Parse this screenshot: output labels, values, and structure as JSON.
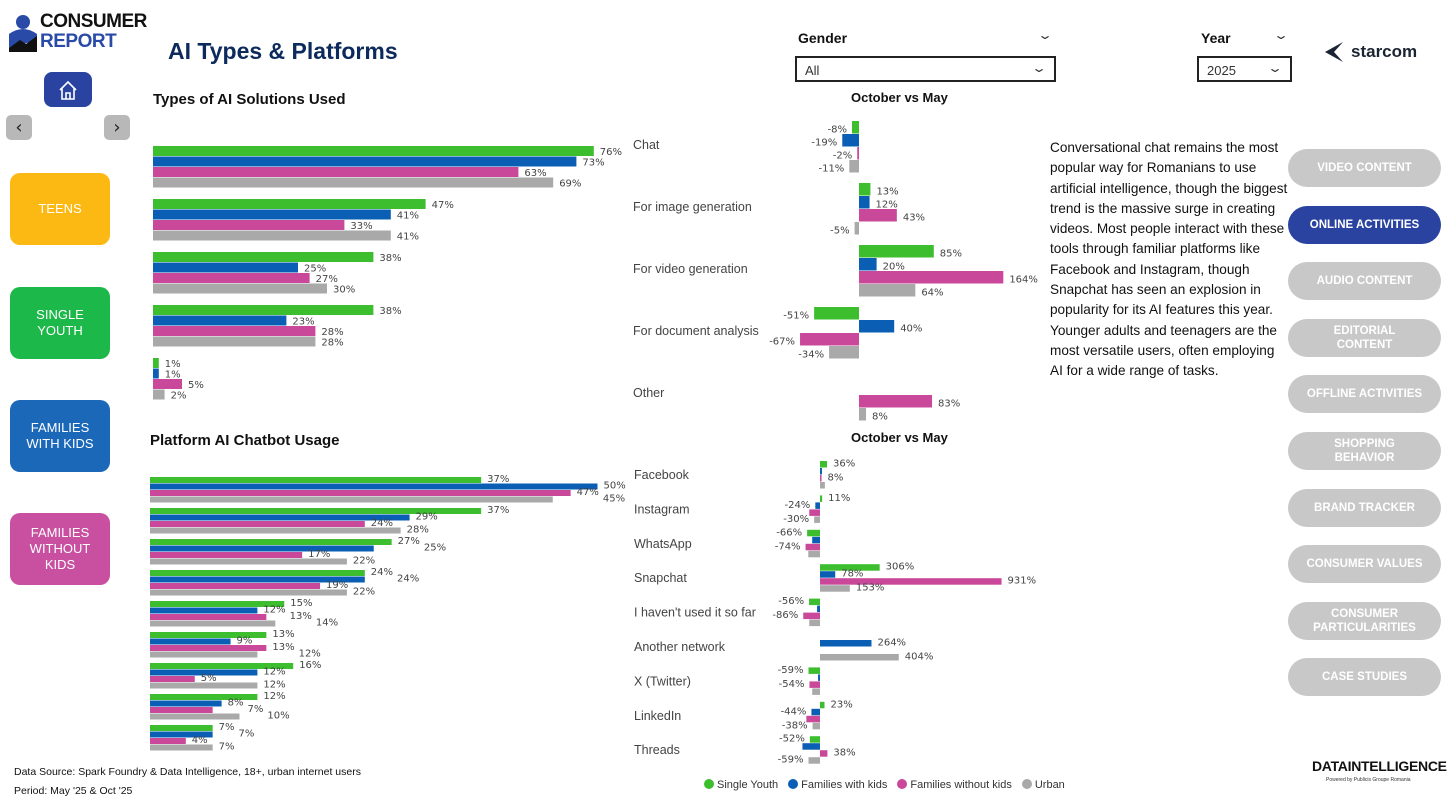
{
  "brand": {
    "logo_line1": "CONSUMER",
    "logo_line2": "REPORT",
    "partner": "starcom",
    "footer_logo": "DATAINTELLIGENCE",
    "footer_logo_sub": "Powered by Publicis Groupe Romania"
  },
  "page_title": "AI Types & Platforms",
  "nav": {
    "home_icon": "home-icon",
    "prev_icon": "chevron-left-icon",
    "next_icon": "chevron-right-icon"
  },
  "segments": [
    {
      "label": "TEENS",
      "color": "#FDB913"
    },
    {
      "label": "SINGLE YOUTH",
      "color": "#1DB84A"
    },
    {
      "label": "FAMILIES WITH KIDS",
      "color": "#1B68B8"
    },
    {
      "label": "FAMILIES WITHOUT KIDS",
      "color": "#C94FA0"
    }
  ],
  "filters": {
    "gender": {
      "label": "Gender",
      "value": "All"
    },
    "year": {
      "label": "Year",
      "value": "2025"
    }
  },
  "sections": {
    "types_title": "Types of AI  Solutions  Used",
    "platform_title": "Platform AI Chatbot Usage",
    "delta_title_1": "October vs May",
    "delta_title_2": "October vs May"
  },
  "commentary": "Conversational chat remains the most popular way for Romanians to use artificial intelligence, though the biggest trend is the massive surge in creating videos. Most people interact with these tools through familiar platforms like Facebook and Instagram, though Snapchat has seen an explosion in popularity for its AI features this year. Younger adults and teenagers are the most versatile users, often employing AI for a wide range of tasks.",
  "right_nav": [
    {
      "label": "VIDEO CONTENT",
      "active": false
    },
    {
      "label": "ONLINE ACTIVITIES",
      "active": true
    },
    {
      "label": "AUDIO CONTENT",
      "active": false
    },
    {
      "label": "EDITORIAL CONTENT",
      "active": false
    },
    {
      "label": "OFFLINE ACTIVITIES",
      "active": false
    },
    {
      "label": "SHOPPING BEHAVIOR",
      "active": false
    },
    {
      "label": "BRAND TRACKER",
      "active": false
    },
    {
      "label": "CONSUMER VALUES",
      "active": false
    },
    {
      "label": "CONSUMER PARTICULARITIES",
      "active": false
    },
    {
      "label": "CASE STUDIES",
      "active": false
    }
  ],
  "footer": {
    "source": "Data Source: Spark Foundry & Data Intelligence, 18+, urban internet users",
    "period": "Period: May '25 & Oct '25"
  },
  "legend": [
    {
      "name": "Single Youth",
      "color": "#3DBE2E"
    },
    {
      "name": "Families with kids",
      "color": "#0A5FB4"
    },
    {
      "name": "Families without kids",
      "color": "#C9489A"
    },
    {
      "name": "Urban",
      "color": "#A9A9A9"
    }
  ],
  "chart_data": [
    {
      "id": "types",
      "type": "bar",
      "title": "Types of AI  Solutions  Used",
      "unit": "%",
      "categories": [
        "Chat",
        "For image generation",
        "For video generation",
        "For document analysis",
        "Other"
      ],
      "series": [
        {
          "name": "Single Youth",
          "values": [
            76,
            47,
            38,
            38,
            1
          ]
        },
        {
          "name": "Families with kids",
          "values": [
            73,
            41,
            25,
            23,
            1
          ]
        },
        {
          "name": "Families without kids",
          "values": [
            63,
            33,
            27,
            28,
            5
          ]
        },
        {
          "name": "Urban",
          "values": [
            69,
            41,
            30,
            28,
            2
          ]
        }
      ]
    },
    {
      "id": "types_delta",
      "type": "bar",
      "title": "October vs May",
      "unit": "%",
      "categories": [
        "Chat",
        "For image generation",
        "For video generation",
        "For document analysis",
        "Other"
      ],
      "series": [
        {
          "name": "Single Youth",
          "values": [
            -8,
            13,
            85,
            -51,
            null
          ]
        },
        {
          "name": "Families with kids",
          "values": [
            -19,
            12,
            20,
            40,
            null
          ]
        },
        {
          "name": "Families without kids",
          "values": [
            -2,
            43,
            164,
            -67,
            83
          ]
        },
        {
          "name": "Urban",
          "values": [
            -11,
            -5,
            64,
            -34,
            8
          ]
        }
      ]
    },
    {
      "id": "platforms",
      "type": "bar",
      "title": "Platform AI Chatbot Usage",
      "unit": "%",
      "categories": [
        "Facebook",
        "Instagram",
        "WhatsApp",
        "Snapchat",
        "I haven't used it so far",
        "Another network",
        "X (Twitter)",
        "LinkedIn",
        "Threads"
      ],
      "series": [
        {
          "name": "Single Youth",
          "values": [
            37,
            37,
            27,
            24,
            15,
            13,
            16,
            12,
            7
          ]
        },
        {
          "name": "Families with kids",
          "values": [
            50,
            29,
            25,
            24,
            12,
            9,
            12,
            8,
            7
          ]
        },
        {
          "name": "Families without kids",
          "values": [
            47,
            24,
            17,
            19,
            13,
            13,
            5,
            7,
            4
          ]
        },
        {
          "name": "Urban",
          "values": [
            45,
            28,
            22,
            22,
            14,
            12,
            12,
            10,
            7
          ]
        }
      ]
    },
    {
      "id": "platforms_delta",
      "type": "bar",
      "title": "October vs May",
      "unit": "%",
      "categories": [
        "Facebook",
        "Instagram",
        "WhatsApp",
        "Snapchat",
        "I haven't used it so far",
        "Another network",
        "X (Twitter)",
        "LinkedIn",
        "Threads"
      ],
      "series": [
        {
          "name": "Single Youth",
          "values": [
            36,
            11,
            -66,
            306,
            -56,
            null,
            -59,
            23,
            -52
          ],
          "labeled": [
            1,
            1,
            1,
            1,
            1,
            0,
            1,
            1,
            1
          ]
        },
        {
          "name": "Families with kids",
          "values": [
            10,
            -24,
            -40,
            78,
            -15,
            264,
            -10,
            -44,
            -90
          ],
          "labeled": [
            0,
            1,
            0,
            1,
            0,
            1,
            0,
            1,
            0
          ]
        },
        {
          "name": "Families without kids",
          "values": [
            8,
            -55,
            -74,
            931,
            -86,
            null,
            -54,
            -70,
            38
          ],
          "labeled": [
            1,
            0,
            1,
            1,
            1,
            0,
            1,
            0,
            1
          ]
        },
        {
          "name": "Urban",
          "values": [
            25,
            -30,
            -60,
            153,
            -55,
            404,
            -40,
            -38,
            -59
          ],
          "labeled": [
            0,
            1,
            0,
            1,
            0,
            1,
            0,
            1,
            1
          ]
        }
      ]
    }
  ]
}
